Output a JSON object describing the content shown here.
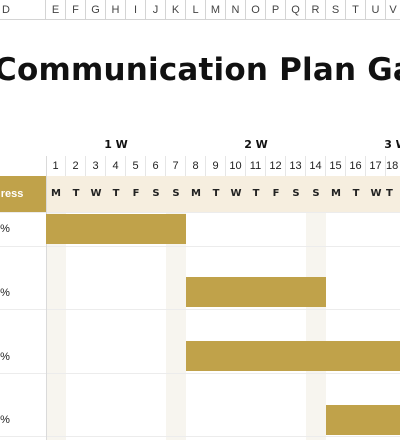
{
  "column_headers": [
    "D",
    "E",
    "F",
    "G",
    "H",
    "I",
    "J",
    "K",
    "L",
    "M",
    "N",
    "O",
    "P",
    "Q",
    "R",
    "S",
    "T",
    "U",
    "V"
  ],
  "title": "Communication Plan Ga",
  "progress_header": "gress",
  "weeks": [
    "1 W",
    "2 W",
    "3 W"
  ],
  "day_numbers": [
    "1",
    "2",
    "3",
    "4",
    "5",
    "6",
    "7",
    "8",
    "9",
    "10",
    "11",
    "12",
    "13",
    "14",
    "15",
    "16",
    "17",
    "18"
  ],
  "day_letters": [
    "M",
    "T",
    "W",
    "T",
    "F",
    "S",
    "S",
    "M",
    "T",
    "W",
    "T",
    "F",
    "S",
    "S",
    "M",
    "T",
    "W",
    "T"
  ],
  "rows": [
    {
      "progress": "0%",
      "bar_start_day": 1,
      "bar_end_day": 7
    },
    {
      "progress": "0%",
      "bar_start_day": 8,
      "bar_end_day": 14
    },
    {
      "progress": "0%",
      "bar_start_day": 8,
      "bar_end_day": 18
    },
    {
      "progress": "0%",
      "bar_start_day": 15,
      "bar_end_day": 18
    }
  ],
  "colors": {
    "accent": "#c0a24a",
    "day_row_bg": "#f6eedf",
    "weekend_bg": "#f7f5ef"
  }
}
